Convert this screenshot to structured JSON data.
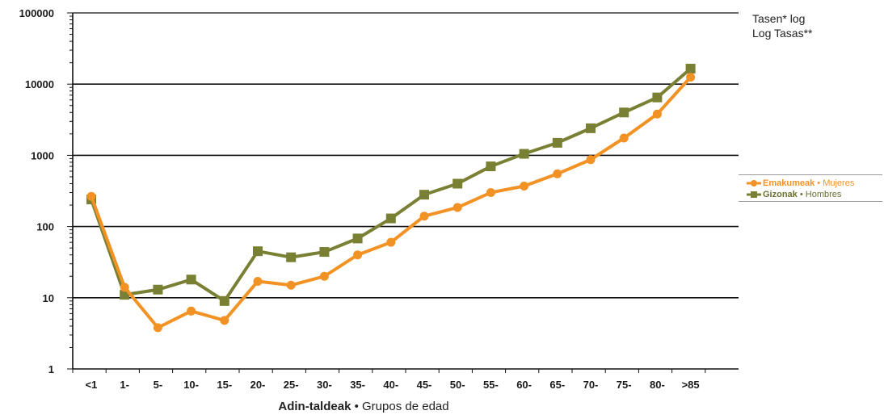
{
  "chart_data": {
    "type": "line",
    "title": "",
    "ylabel_lines": [
      "Tasen* log",
      "Log Tasas**"
    ],
    "xlabel_bold": "Adin-taldeak",
    "xlabel_sep": "•",
    "xlabel_rest": "Grupos de edad",
    "yscale": "log",
    "ylim": [
      1,
      100000
    ],
    "yticks": [
      "1",
      "10",
      "100",
      "1000",
      "10000",
      "100000"
    ],
    "grid": "horizontal",
    "legend_position": "right",
    "categories": [
      "<1",
      "1-",
      "5-",
      "10-",
      "15-",
      "20-",
      "25-",
      "30-",
      "35-",
      "40-",
      "45-",
      "50-",
      "55-",
      "60-",
      "65-",
      "70-",
      "75-",
      "80-",
      ">85"
    ],
    "series": [
      {
        "name_bold": "Emakumeak",
        "name_sep": "•",
        "name_rest": "Mujeres",
        "color": "#f39224",
        "label_color": "#f39224",
        "marker": "circle",
        "values": [
          265,
          14,
          3.8,
          6.5,
          4.8,
          17,
          15,
          20,
          40,
          60,
          140,
          185,
          300,
          370,
          550,
          870,
          1750,
          3800,
          12500
        ]
      },
      {
        "name_bold": "Gizonak",
        "name_sep": "•",
        "name_rest": "Hombres",
        "color": "#7a8033",
        "label_color": "#6b7030",
        "marker": "square",
        "values": [
          240,
          11,
          13,
          18,
          9,
          45,
          37,
          44,
          68,
          130,
          280,
          400,
          700,
          1050,
          1500,
          2400,
          4000,
          6500,
          16500
        ]
      }
    ]
  }
}
